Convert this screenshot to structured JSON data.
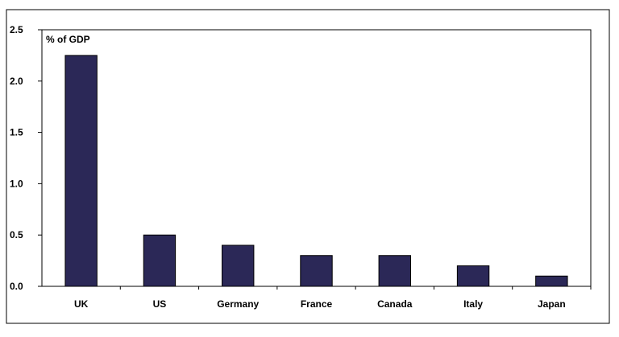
{
  "chart_data": {
    "type": "bar",
    "ylabel": "% of GDP",
    "categories": [
      "UK",
      "US",
      "Germany",
      "France",
      "Canada",
      "Italy",
      "Japan"
    ],
    "values": [
      2.25,
      0.5,
      0.4,
      0.3,
      0.3,
      0.2,
      0.1
    ],
    "ylim": [
      0,
      2.5
    ],
    "yticks": [
      "0.0",
      "0.5",
      "1.0",
      "1.5",
      "2.0",
      "2.5"
    ],
    "grid": false,
    "legend": "none",
    "bar_color": "#2b2857"
  }
}
